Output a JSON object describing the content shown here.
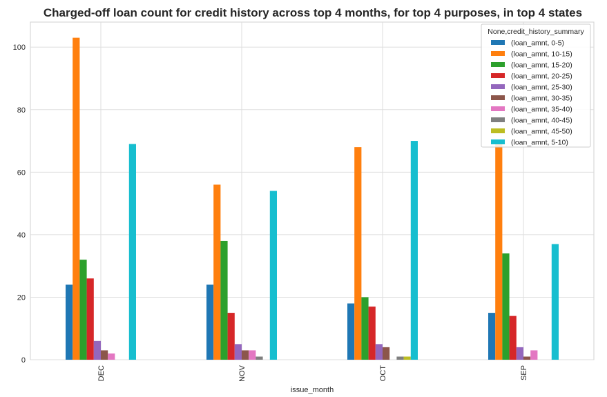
{
  "chart_data": {
    "type": "bar",
    "title": "Charged-off loan count for credit history across top 4 months, for top 4 purposes, in top 4 states",
    "xlabel": "issue_month",
    "ylabel": "",
    "categories": [
      "DEC",
      "NOV",
      "OCT",
      "SEP"
    ],
    "ylim": [
      0,
      108
    ],
    "yticks": [
      0,
      20,
      40,
      60,
      80,
      100
    ],
    "grid": true,
    "legend": {
      "title": "None,credit_history_summary",
      "placement": "top-right"
    },
    "series": [
      {
        "name": "(loan_amnt, 0-5)",
        "color": "#1f77b4",
        "values": [
          24,
          24,
          18,
          15
        ]
      },
      {
        "name": "(loan_amnt, 10-15)",
        "color": "#ff7f0e",
        "values": [
          103,
          56,
          68,
          69
        ]
      },
      {
        "name": "(loan_amnt, 15-20)",
        "color": "#2ca02c",
        "values": [
          32,
          38,
          20,
          34
        ]
      },
      {
        "name": "(loan_amnt, 20-25)",
        "color": "#d62728",
        "values": [
          26,
          15,
          17,
          14
        ]
      },
      {
        "name": "(loan_amnt, 25-30)",
        "color": "#9467bd",
        "values": [
          6,
          5,
          5,
          4
        ]
      },
      {
        "name": "(loan_amnt, 30-35)",
        "color": "#8c564b",
        "values": [
          3,
          3,
          4,
          1
        ]
      },
      {
        "name": "(loan_amnt, 35-40)",
        "color": "#e377c2",
        "values": [
          2,
          3,
          0,
          3
        ]
      },
      {
        "name": "(loan_amnt, 40-45)",
        "color": "#7f7f7f",
        "values": [
          0,
          1,
          1,
          0
        ]
      },
      {
        "name": "(loan_amnt, 45-50)",
        "color": "#bcbd22",
        "values": [
          0,
          0,
          1,
          0
        ]
      },
      {
        "name": "(loan_amnt, 5-10)",
        "color": "#17becf",
        "values": [
          69,
          54,
          70,
          37
        ]
      }
    ]
  }
}
